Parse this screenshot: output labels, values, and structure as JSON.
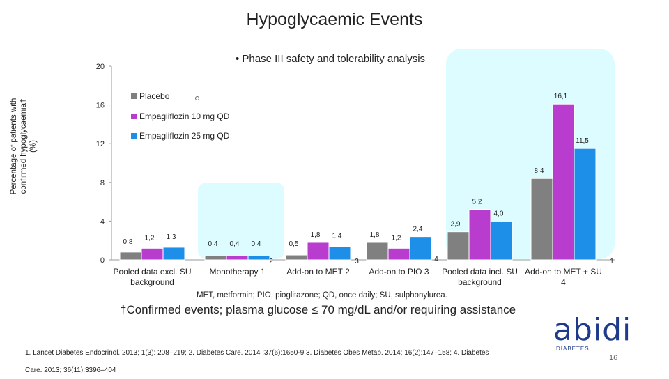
{
  "slide": {
    "title": "Hypoglycaemic Events",
    "bullet": "• Phase III safety and tolerability analysis",
    "ylabel_line1": "Percentage of patients with",
    "ylabel_line2": "confirmed hypoglycaemia† (%)",
    "footnote": "MET, metformin; PIO, pioglitazone; QD, once daily; SU, sulphonylurea.",
    "confirmed": "†Confirmed events; plasma glucose ≤ 70 mg/dL and/or requiring assistance",
    "ref_line1": "1. Lancet Diabetes Endocrinol. 2013; 1(3): 208–219; 2. Diabetes Care. 2014 ;37(6):1650-9 3. Diabetes Obes Metab. 2014; 16(2):147–158; 4. Diabetes",
    "ref_line2": "Care. 2013; 36(11):3396–404",
    "page_number": "16",
    "logo_word": "abidi",
    "logo_sub": "DIABETES"
  },
  "chart_data": {
    "type": "bar",
    "title": "Hypoglycaemic Events",
    "ylabel": "Percentage of patients with confirmed hypoglycaemia† (%)",
    "ylim": [
      0,
      20
    ],
    "yticks": [
      "0",
      "4",
      "8",
      "12",
      "16",
      "20"
    ],
    "categories": [
      [
        "Pooled data excl. SU",
        "background"
      ],
      [
        "Monotherapy 1"
      ],
      [
        "Add-on to MET 2"
      ],
      [
        "Add-on to PIO 3"
      ],
      [
        "Pooled data incl. SU",
        "background"
      ],
      [
        "Add-on to MET + SU",
        "4"
      ]
    ],
    "series": [
      {
        "name": "Placebo",
        "color": "#808080",
        "values": [
          0.8,
          0.4,
          0.5,
          1.8,
          2.9,
          8.4
        ],
        "labels": [
          "0,8",
          "0,4",
          "0,5",
          "1,8",
          "2,9",
          "8,4"
        ]
      },
      {
        "name": "Empagliflozin 10 mg QD",
        "color": "#b83dcf",
        "values": [
          1.2,
          0.4,
          1.8,
          1.2,
          5.2,
          16.1
        ],
        "labels": [
          "1,2",
          "0,4",
          "1,8",
          "1,2",
          "5,2",
          "16,1"
        ]
      },
      {
        "name": "Empagliflozin 25 mg QD",
        "color": "#1e8fe8",
        "values": [
          1.3,
          0.4,
          1.4,
          2.4,
          4.0,
          11.5
        ],
        "labels": [
          "1,3",
          "0,4",
          "1,4",
          "2,4",
          "4,0",
          "11,5"
        ]
      }
    ],
    "stray_labels": [
      "2",
      "3",
      "4",
      "1"
    ],
    "legend_placement": "top-left",
    "grid": false
  }
}
